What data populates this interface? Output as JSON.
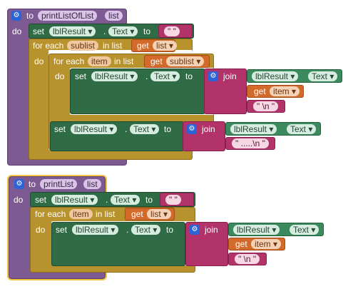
{
  "block1": {
    "to_kw": "to",
    "proc_name": "printListOfList",
    "param": "list",
    "do_kw": "do",
    "set1": {
      "set_kw": "set",
      "component": "lblResult ▾",
      "dot": ".",
      "property": "Text ▾",
      "to_kw": "to",
      "value": "\" \""
    },
    "foreach_outer": {
      "label": "for each",
      "var": "sublist",
      "in_list": "in list",
      "get_kw": "get",
      "get_var": "list ▾",
      "do_kw": "do"
    },
    "foreach_inner": {
      "label": "for each",
      "var": "item",
      "in_list": "in list",
      "get_kw": "get",
      "get_var": "sublist ▾",
      "do_kw": "do"
    },
    "set2": {
      "set_kw": "set",
      "component": "lblResult ▾",
      "dot": ".",
      "property": "Text ▾",
      "to_kw": "to",
      "join_kw": "join",
      "arg_component": "lblResult ▾",
      "arg_property": "Text ▾",
      "get_kw": "get",
      "get_var": "item ▾",
      "str": "\" \\n \""
    },
    "set3": {
      "set_kw": "set",
      "component": "lblResult ▾",
      "dot": ".",
      "property": "Text ▾",
      "to_kw": "to",
      "join_kw": "join",
      "arg_component": "lblResult ▾",
      "arg_property": "Text ▾",
      "str": "\" .....\\n \""
    }
  },
  "block2": {
    "to_kw": "to",
    "proc_name": "printList",
    "param": "list",
    "do_kw": "do",
    "set1": {
      "set_kw": "set",
      "component": "lblResult ▾",
      "dot": ".",
      "property": "Text ▾",
      "to_kw": "to",
      "value": "\" \""
    },
    "foreach": {
      "label": "for each",
      "var": "item",
      "in_list": "in list",
      "get_kw": "get",
      "get_var": "list ▾",
      "do_kw": "do"
    },
    "set2": {
      "set_kw": "set",
      "component": "lblResult ▾",
      "dot": ".",
      "property": "Text ▾",
      "to_kw": "to",
      "join_kw": "join",
      "arg_component": "lblResult ▾",
      "arg_property": "Text ▾",
      "get_kw": "get",
      "get_var": "item ▾",
      "str": "\" \\n \""
    }
  }
}
